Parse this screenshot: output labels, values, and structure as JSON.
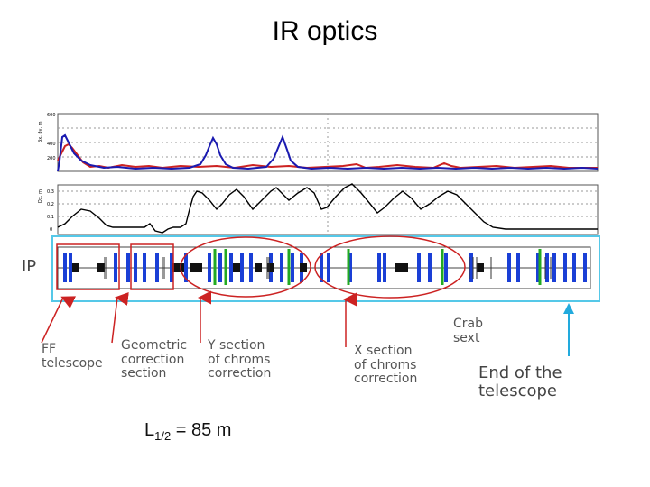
{
  "title": "IR optics",
  "plot_top": {
    "y_axis_label": "βx, βy, m",
    "y_ticks": [
      "600",
      "400",
      "200"
    ]
  },
  "plot_bottom": {
    "y_axis_label": "Dx, m",
    "y_ticks": [
      "0.3",
      "0.2",
      "0.1",
      "0"
    ]
  },
  "labels": {
    "ip": "IP",
    "ff_line1": "FF",
    "ff_line2": "telescope",
    "geo_line1": "Geometric",
    "geo_line2": "correction",
    "geo_line3": "section",
    "y_line1": "Y section",
    "y_line2": "of chroms",
    "y_line3": "correction",
    "x_line1": "X section",
    "x_line2": "of chroms",
    "x_line3": "correction",
    "crab_line1": "Crab",
    "crab_line2": "sext",
    "end_line1": "End of the",
    "end_line2": "telescope",
    "lhalf_main": "L",
    "lhalf_sub": "1/2",
    "lhalf_value": " = 85 m"
  },
  "colors": {
    "beta_x": "#cc2222",
    "beta_y": "#1a1ab0",
    "dispersion": "#000000",
    "quad": "#1a3fd6",
    "sext": "#22aa22",
    "dipole": "#111111",
    "annotation": "#cc2222",
    "telescope_arrow": "#22aadd",
    "lattice_frame": "#55c8e8"
  }
}
